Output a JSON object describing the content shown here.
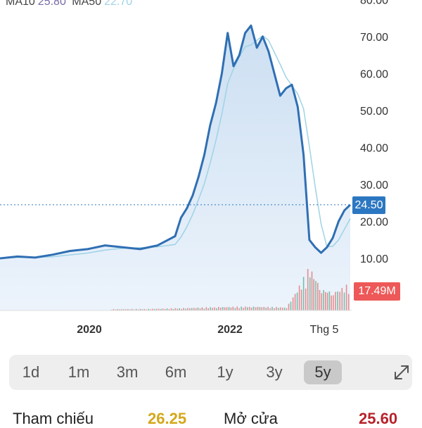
{
  "chart_data": {
    "type": "line",
    "title": "",
    "xlabel": "",
    "ylabel": "",
    "ylim": [
      0,
      80
    ],
    "y_ticks": [
      "10.00",
      "20.00",
      "30.00",
      "40.00",
      "50.00",
      "60.00",
      "70.00",
      "80.00"
    ],
    "x_tick_labels": [
      "2020",
      "2022",
      "Thg 5"
    ],
    "grid": false,
    "moving_averages": [
      {
        "name": "MA10",
        "value": "25.80",
        "color": "#7a6aa8"
      },
      {
        "name": "MA50",
        "value": "22.70",
        "color": "#9ed3e6"
      }
    ],
    "current_price": "24.50",
    "current_volume": "17.49M",
    "series": [
      {
        "color": "#2f6fb3",
        "x": [
          "2018-06",
          "2018-09",
          "2018-12",
          "2019-03",
          "2019-06",
          "2019-09",
          "2019-12",
          "2020-03",
          "2020-06",
          "2020-09",
          "2020-12",
          "2021-01",
          "2021-02",
          "2021-03",
          "2021-04",
          "2021-05",
          "2021-06",
          "2021-07",
          "2021-08",
          "2021-09",
          "2021-10",
          "2021-11",
          "2021-12",
          "2022-01",
          "2022-02",
          "2022-03",
          "2022-04",
          "2022-05",
          "2022-06",
          "2022-07",
          "2022-08",
          "2022-09",
          "2022-10",
          "2022-11",
          "2022-12",
          "2023-01",
          "2023-02",
          "2023-03",
          "2023-04",
          "2023-05",
          "2023-06"
        ],
        "values": [
          10.0,
          10.5,
          10.2,
          11.0,
          12.0,
          12.5,
          13.5,
          13.0,
          12.5,
          13.5,
          16.0,
          21.0,
          23.5,
          27.0,
          32.0,
          38.0,
          46.0,
          52.0,
          60.0,
          71.0,
          62.0,
          65.0,
          71.0,
          73.0,
          67.0,
          70.0,
          66.0,
          60.0,
          54.0,
          56.0,
          57.0,
          51.0,
          38.0,
          15.0,
          13.0,
          11.5,
          13.0,
          15.5,
          20.0,
          23.0,
          24.5
        ]
      }
    ],
    "volume_series": {
      "color": "#e0625a",
      "x": [
        "2020-01",
        "2020-07",
        "2021-01",
        "2021-07",
        "2022-01",
        "2022-07",
        "2022-11",
        "2023-01",
        "2023-03",
        "2023-06"
      ],
      "values": [
        0.8,
        1.0,
        1.5,
        2.2,
        2.5,
        2.0,
        28.0,
        14.0,
        12.0,
        17.49
      ]
    }
  },
  "timeframe_tabs": [
    "1d",
    "1m",
    "3m",
    "6m",
    "1y",
    "3y",
    "5y"
  ],
  "active_tab": "5y",
  "stats": {
    "ref_label": "Tham chiếu",
    "ref_value": "26.25",
    "open_label": "Mở cửa",
    "open_value": "25.60"
  },
  "colors": {
    "price_line": "#2f6fb3",
    "area_fill": "#d9e8f6",
    "ma50_line": "#9ed3e6",
    "ma10_text": "#7a6aa8",
    "price_badge": "#2c77c1",
    "volume_badge": "#ee5858",
    "ref_value_color": "#d4a81a",
    "open_value_color": "#b8222a",
    "volume_up": "#4caf8e",
    "volume_down": "#e36b6b"
  }
}
